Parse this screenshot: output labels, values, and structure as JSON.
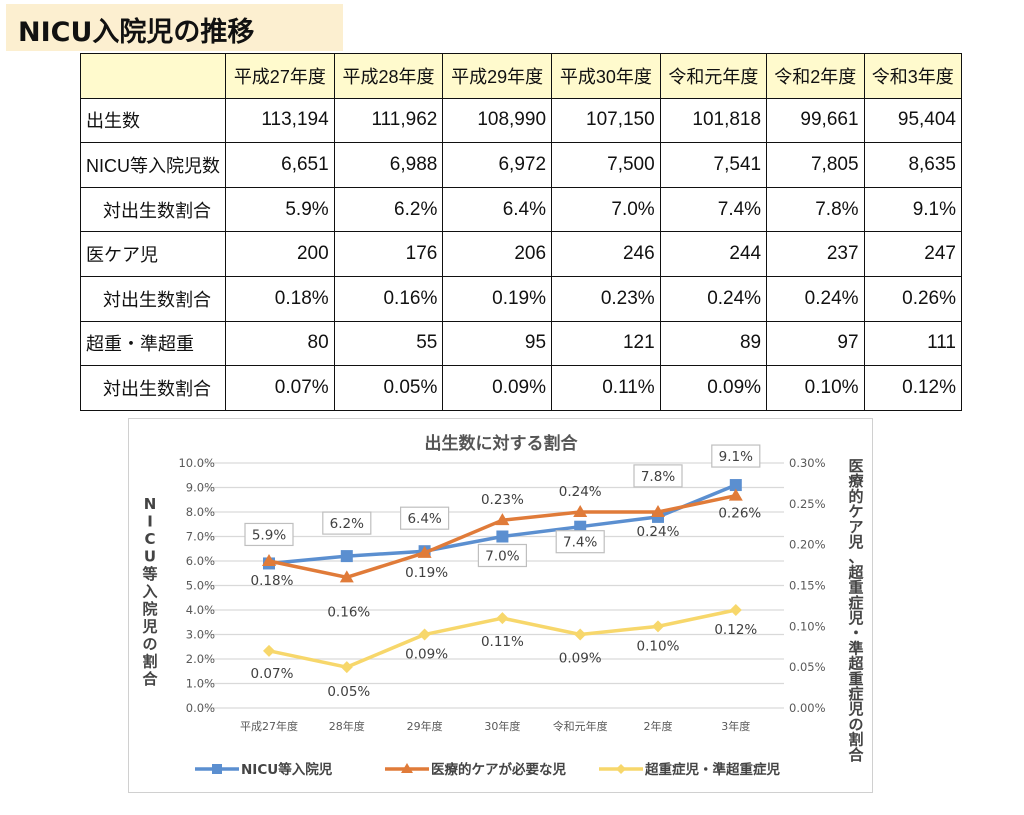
{
  "title": "NICU入院児の推移",
  "table": {
    "columns": [
      "平成27年度",
      "平成28年度",
      "平成29年度",
      "平成30年度",
      "令和元年度",
      "令和2年度",
      "令和3年度"
    ],
    "rows": [
      {
        "label": "出生数",
        "indent": false,
        "values": [
          "113,194",
          "111,962",
          "108,990",
          "107,150",
          "101,818",
          "99,661",
          "95,404"
        ]
      },
      {
        "label": "NICU等入院児数",
        "indent": false,
        "values": [
          "6,651",
          "6,988",
          "6,972",
          "7,500",
          "7,541",
          "7,805",
          "8,635"
        ]
      },
      {
        "label": "対出生数割合",
        "indent": true,
        "values": [
          "5.9%",
          "6.2%",
          "6.4%",
          "7.0%",
          "7.4%",
          "7.8%",
          "9.1%"
        ]
      },
      {
        "label": "医ケア児",
        "indent": false,
        "values": [
          "200",
          "176",
          "206",
          "246",
          "244",
          "237",
          "247"
        ]
      },
      {
        "label": "対出生数割合",
        "indent": true,
        "values": [
          "0.18%",
          "0.16%",
          "0.19%",
          "0.23%",
          "0.24%",
          "0.24%",
          "0.26%"
        ]
      },
      {
        "label": "超重・準超重",
        "indent": false,
        "values": [
          "80",
          "55",
          "95",
          "121",
          "89",
          "97",
          "111"
        ]
      },
      {
        "label": "対出生数割合",
        "indent": true,
        "values": [
          "0.07%",
          "0.05%",
          "0.09%",
          "0.11%",
          "0.09%",
          "0.10%",
          "0.12%"
        ]
      }
    ]
  },
  "chart_data": {
    "type": "line",
    "title": "出生数に対する割合",
    "categories": [
      "平成27年度",
      "28年度",
      "29年度",
      "30年度",
      "令和元年度",
      "2年度",
      "3年度"
    ],
    "ylabel": "NICU等入院児の割合",
    "y2label": "医療的ケア児、超重症児・準超重症児の割合",
    "ylim": [
      0,
      10
    ],
    "y2lim": [
      0,
      0.3
    ],
    "yticks": [
      "0.0%",
      "1.0%",
      "2.0%",
      "3.0%",
      "4.0%",
      "5.0%",
      "6.0%",
      "7.0%",
      "8.0%",
      "9.0%",
      "10.0%"
    ],
    "y2ticks": [
      "0.00%",
      "0.05%",
      "0.10%",
      "0.15%",
      "0.20%",
      "0.25%",
      "0.30%"
    ],
    "grid": true,
    "legend": "bottom",
    "series": [
      {
        "name": "NICU等入院児",
        "axis": "left",
        "color": "#5b8fd0",
        "marker": "square",
        "values": [
          5.9,
          6.2,
          6.4,
          7.0,
          7.4,
          7.8,
          9.1
        ],
        "labels": [
          "5.9%",
          "6.2%",
          "6.4%",
          "7.0%",
          "7.4%",
          "7.8%",
          "9.1%"
        ]
      },
      {
        "name": "医療的ケアが必要な児",
        "axis": "right",
        "color": "#e07b39",
        "marker": "triangle",
        "values": [
          0.18,
          0.16,
          0.19,
          0.23,
          0.24,
          0.24,
          0.26
        ],
        "labels": [
          "0.18%",
          "0.16%",
          "0.19%",
          "0.23%",
          "0.24%",
          "0.24%",
          "0.26%"
        ]
      },
      {
        "name": "超重症児・準超重症児",
        "axis": "right",
        "color": "#f7d76b",
        "marker": "diamond",
        "values": [
          0.07,
          0.05,
          0.09,
          0.11,
          0.09,
          0.1,
          0.12
        ],
        "labels": [
          "0.07%",
          "0.05%",
          "0.09%",
          "0.11%",
          "0.09%",
          "0.10%",
          "0.12%"
        ]
      }
    ]
  }
}
